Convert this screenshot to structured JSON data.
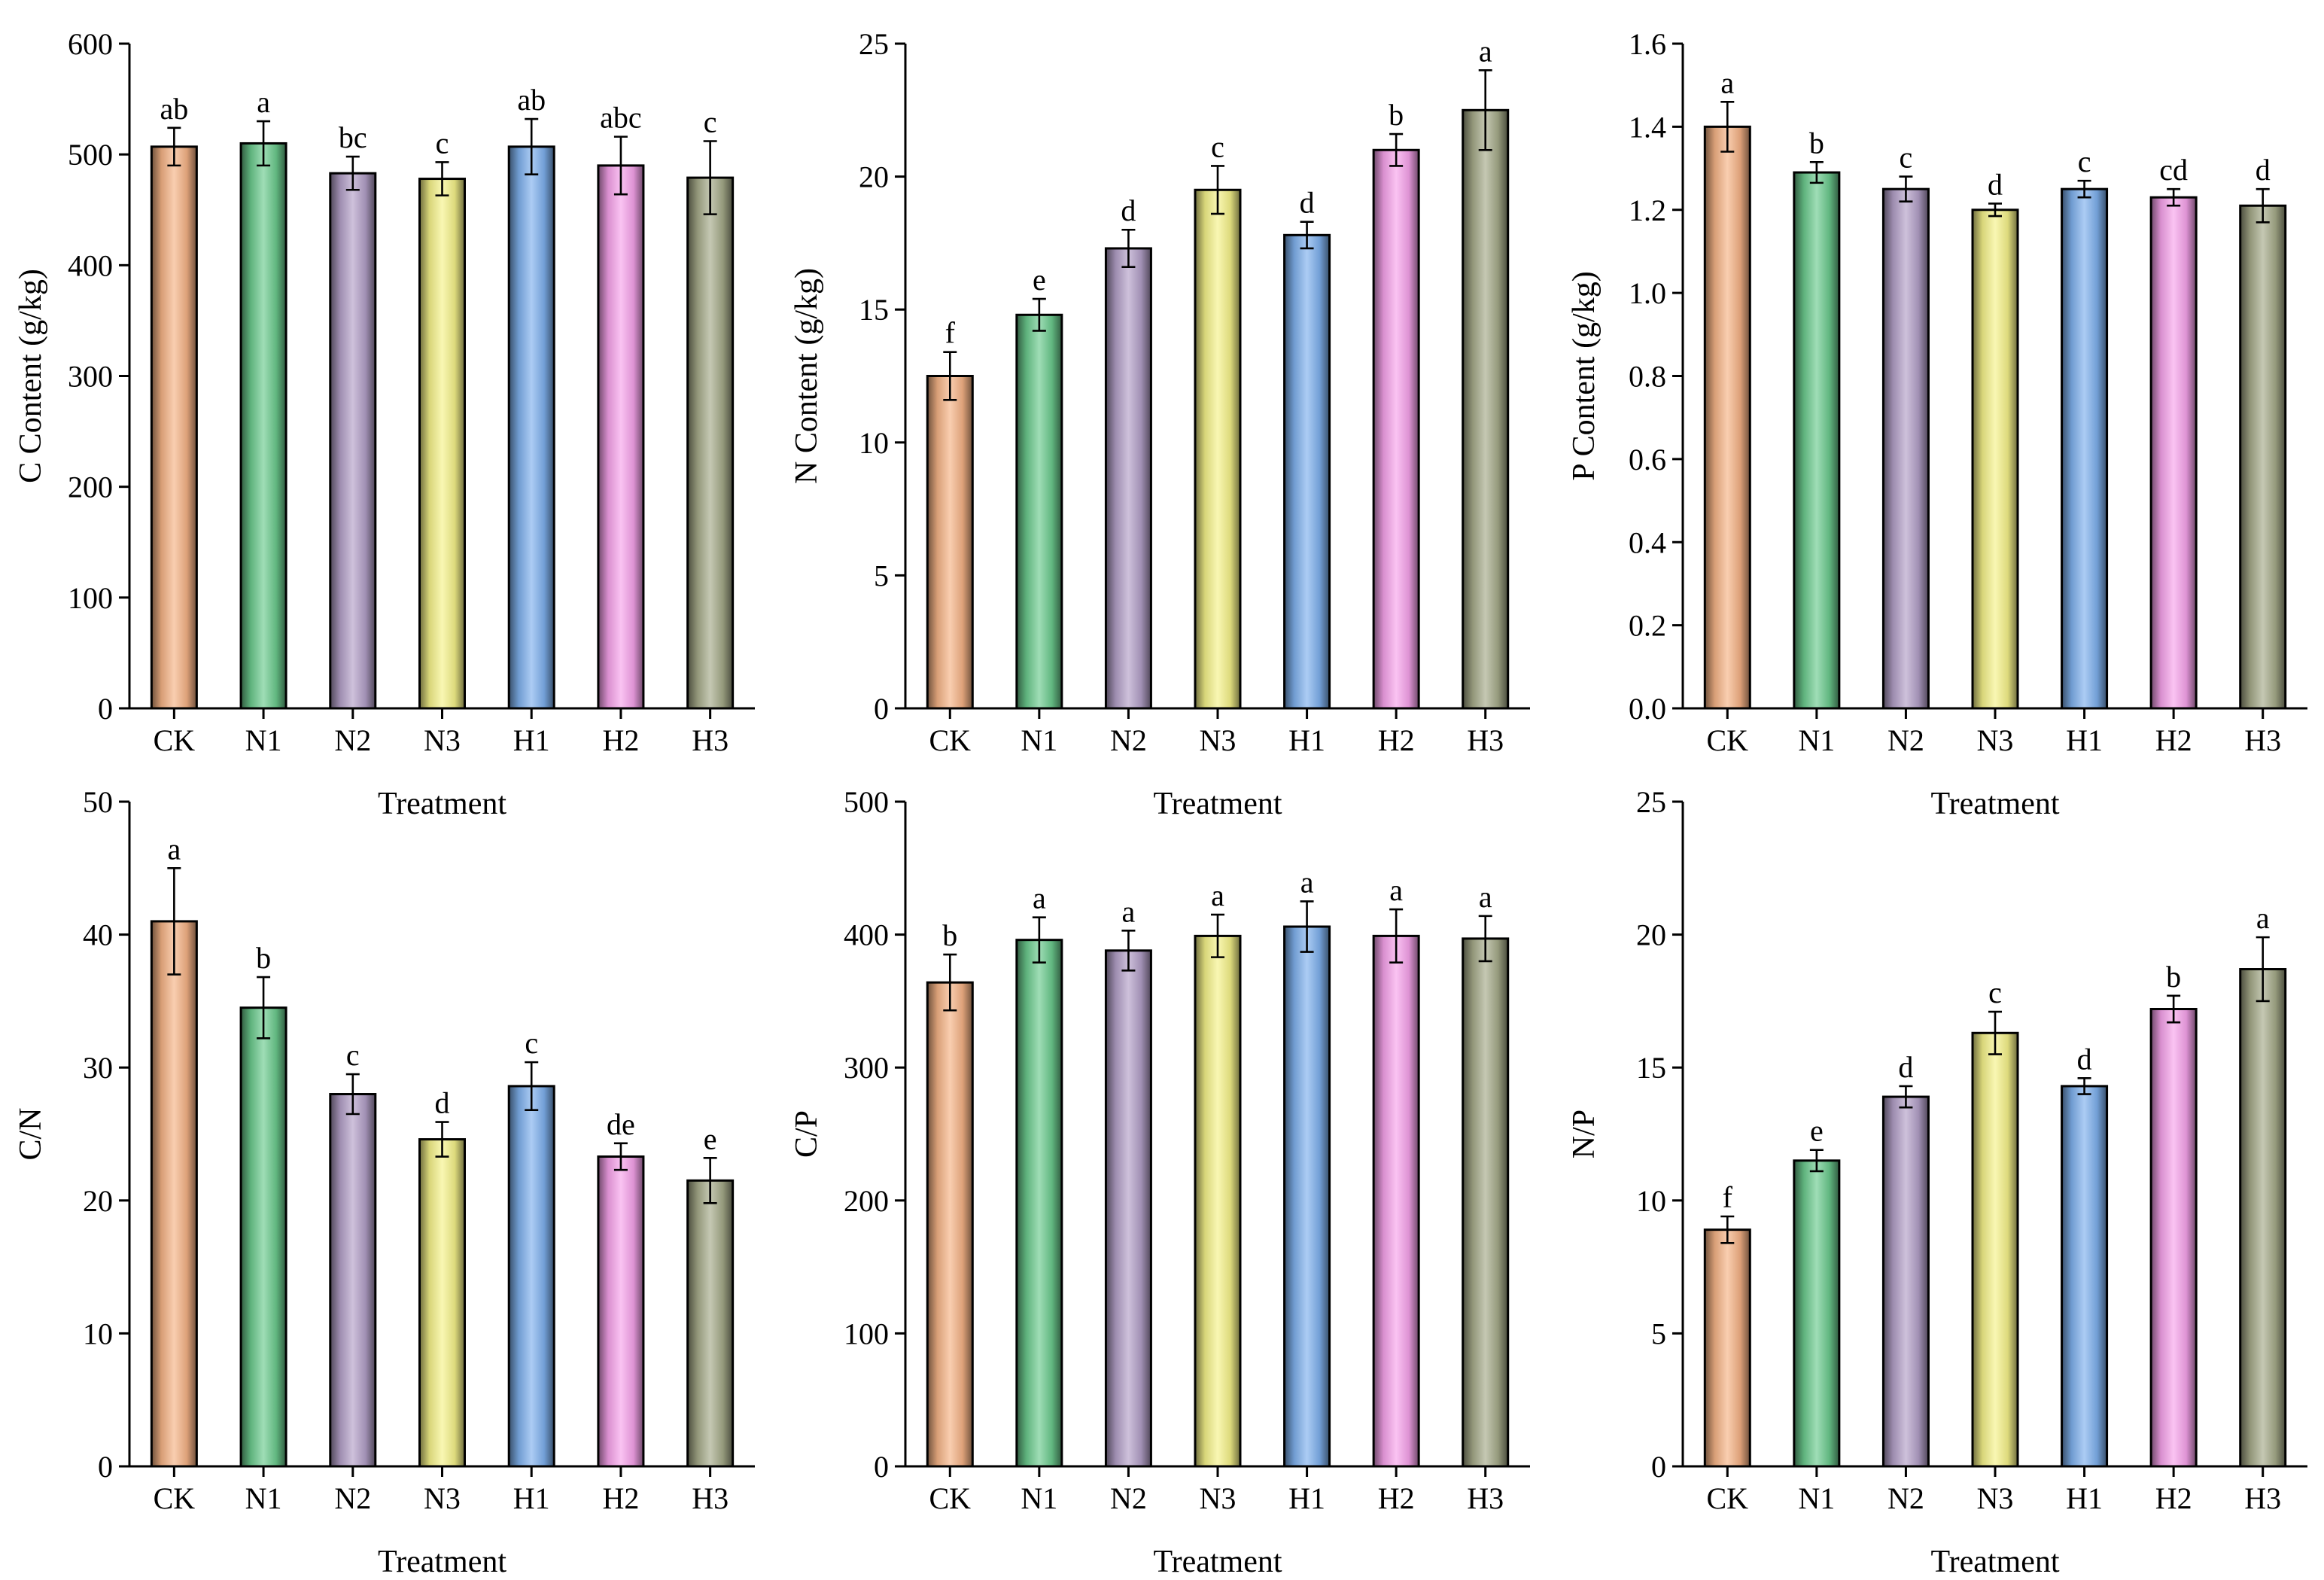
{
  "figure": {
    "categories": [
      "CK",
      "N1",
      "N2",
      "N3",
      "H1",
      "H2",
      "H3"
    ],
    "bar_colors": [
      "#F6B386",
      "#6CCB8E",
      "#B3A0C8",
      "#F5F28A",
      "#7FB1EE",
      "#F7A3EB",
      "#A6AB8A"
    ]
  },
  "chart_data": [
    {
      "type": "bar",
      "id": "c",
      "title": "",
      "xlabel": "Treatment",
      "ylabel": "C Content (g/kg)",
      "ylim": [
        0,
        600
      ],
      "yticks": [
        "0",
        "100",
        "200",
        "300",
        "400",
        "500",
        "600"
      ],
      "categories": [
        "CK",
        "N1",
        "N2",
        "N3",
        "H1",
        "H2",
        "H3"
      ],
      "values": [
        507,
        510,
        483,
        478,
        507,
        490,
        479
      ],
      "errors": [
        17,
        20,
        15,
        15,
        25,
        26,
        33
      ],
      "letters": [
        "ab",
        "a",
        "bc",
        "c",
        "ab",
        "abc",
        "c"
      ]
    },
    {
      "type": "bar",
      "id": "n",
      "title": "",
      "xlabel": "Treatment",
      "ylabel": "N Content (g/kg)",
      "ylim": [
        0,
        25
      ],
      "yticks": [
        "0",
        "5",
        "10",
        "15",
        "20",
        "25"
      ],
      "categories": [
        "CK",
        "N1",
        "N2",
        "N3",
        "H1",
        "H2",
        "H3"
      ],
      "values": [
        12.5,
        14.8,
        17.3,
        19.5,
        17.8,
        21.0,
        22.5
      ],
      "errors": [
        0.9,
        0.6,
        0.7,
        0.9,
        0.5,
        0.6,
        1.5
      ],
      "letters": [
        "f",
        "e",
        "d",
        "c",
        "d",
        "b",
        "a"
      ]
    },
    {
      "type": "bar",
      "id": "p",
      "title": "",
      "xlabel": "Treatment",
      "ylabel": "P Content (g/kg)",
      "ylim": [
        0,
        1.6
      ],
      "yticks": [
        "0.0",
        "0.2",
        "0.4",
        "0.6",
        "0.8",
        "1.0",
        "1.2",
        "1.4",
        "1.6"
      ],
      "categories": [
        "CK",
        "N1",
        "N2",
        "N3",
        "H1",
        "H2",
        "H3"
      ],
      "values": [
        1.4,
        1.29,
        1.25,
        1.2,
        1.25,
        1.23,
        1.21
      ],
      "errors": [
        0.06,
        0.025,
        0.03,
        0.015,
        0.02,
        0.02,
        0.04
      ],
      "letters": [
        "a",
        "b",
        "c",
        "d",
        "c",
        "cd",
        "d"
      ]
    },
    {
      "type": "bar",
      "id": "cn",
      "title": "",
      "xlabel": "Treatment",
      "ylabel": "C/N",
      "ylim": [
        0,
        50
      ],
      "yticks": [
        "0",
        "10",
        "20",
        "30",
        "40",
        "50"
      ],
      "categories": [
        "CK",
        "N1",
        "N2",
        "N3",
        "H1",
        "H2",
        "H3"
      ],
      "values": [
        41.0,
        34.5,
        28.0,
        24.6,
        28.6,
        23.3,
        21.5
      ],
      "errors": [
        4.0,
        2.3,
        1.5,
        1.3,
        1.8,
        1.0,
        1.7
      ],
      "letters": [
        "a",
        "b",
        "c",
        "d",
        "c",
        "de",
        "e"
      ]
    },
    {
      "type": "bar",
      "id": "cp",
      "title": "",
      "xlabel": "Treatment",
      "ylabel": "C/P",
      "ylim": [
        0,
        500
      ],
      "yticks": [
        "0",
        "100",
        "200",
        "300",
        "400",
        "500"
      ],
      "categories": [
        "CK",
        "N1",
        "N2",
        "N3",
        "H1",
        "H2",
        "H3"
      ],
      "values": [
        364,
        396,
        388,
        399,
        406,
        399,
        397
      ],
      "errors": [
        21,
        17,
        15,
        16,
        19,
        20,
        17
      ],
      "letters": [
        "b",
        "a",
        "a",
        "a",
        "a",
        "a",
        "a"
      ]
    },
    {
      "type": "bar",
      "id": "np",
      "title": "",
      "xlabel": "Treatment",
      "ylabel": "N/P",
      "ylim": [
        0,
        25
      ],
      "yticks": [
        "0",
        "5",
        "10",
        "15",
        "20",
        "25"
      ],
      "categories": [
        "CK",
        "N1",
        "N2",
        "N3",
        "H1",
        "H2",
        "H3"
      ],
      "values": [
        8.9,
        11.5,
        13.9,
        16.3,
        14.3,
        17.2,
        18.7
      ],
      "errors": [
        0.5,
        0.4,
        0.4,
        0.8,
        0.3,
        0.5,
        1.2
      ],
      "letters": [
        "f",
        "e",
        "d",
        "c",
        "d",
        "b",
        "a"
      ]
    }
  ]
}
